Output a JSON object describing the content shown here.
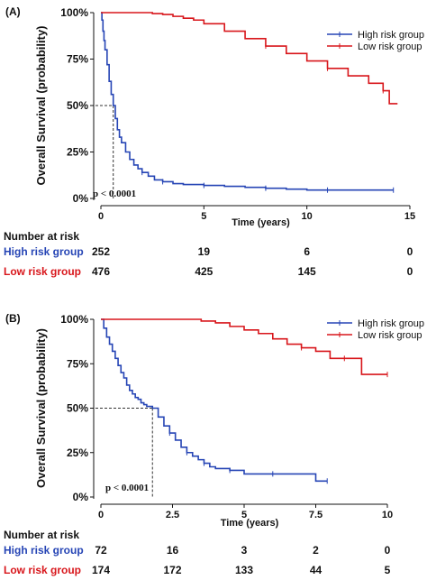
{
  "colors": {
    "high": "#2645b5",
    "low": "#d8161b",
    "axis": "#111111",
    "ref": "#333333"
  },
  "chart_data": [
    {
      "type": "line",
      "panel_label": "(A)",
      "xlabel": "Time (years)",
      "ylabel": "Overall Survival (probability)",
      "xlim": [
        0,
        15
      ],
      "ylim": [
        0,
        1
      ],
      "xticks": [
        0,
        5,
        10,
        15
      ],
      "xtick_labels": [
        "0",
        "5",
        "10",
        "15"
      ],
      "yticks": [
        0,
        0.25,
        0.5,
        0.75,
        1
      ],
      "ytick_labels": [
        "0%",
        "25%",
        "50%",
        "75%",
        "100%"
      ],
      "pvalue": "p < 0.0001",
      "median_line": {
        "x": 0.6,
        "y": 0.5
      },
      "legend_position": "top-right",
      "series": [
        {
          "name": "High risk group",
          "color": "high",
          "x": [
            0,
            0.05,
            0.1,
            0.15,
            0.2,
            0.3,
            0.4,
            0.5,
            0.6,
            0.7,
            0.8,
            0.9,
            1.0,
            1.2,
            1.4,
            1.6,
            1.8,
            2.0,
            2.3,
            2.6,
            3.0,
            3.5,
            4.0,
            5.0,
            6.0,
            7.0,
            8.0,
            9.0,
            10.0,
            11.0,
            12.0,
            13.0,
            14.2
          ],
          "y": [
            1.0,
            0.96,
            0.9,
            0.85,
            0.8,
            0.72,
            0.63,
            0.56,
            0.5,
            0.43,
            0.37,
            0.33,
            0.3,
            0.25,
            0.21,
            0.18,
            0.16,
            0.14,
            0.12,
            0.1,
            0.09,
            0.08,
            0.075,
            0.07,
            0.065,
            0.06,
            0.055,
            0.05,
            0.045,
            0.045,
            0.045,
            0.045,
            0.045
          ]
        },
        {
          "name": "Low risk group",
          "color": "low",
          "x": [
            0,
            1,
            2,
            2.5,
            3,
            3.5,
            4,
            4.5,
            5,
            6,
            7,
            8,
            9,
            10,
            11,
            12,
            13,
            13.7,
            14,
            14.4
          ],
          "y": [
            1.0,
            1.0,
            1.0,
            0.995,
            0.99,
            0.98,
            0.97,
            0.96,
            0.94,
            0.9,
            0.86,
            0.82,
            0.78,
            0.74,
            0.7,
            0.66,
            0.62,
            0.58,
            0.51,
            0.51
          ]
        }
      ],
      "risk_table": {
        "title": "Number at risk",
        "times": [
          0,
          5,
          10,
          15
        ],
        "rows": [
          {
            "label": "High risk group",
            "color": "high",
            "values": [
              "252",
              "19",
              "6",
              "0"
            ]
          },
          {
            "label": "Low risk group",
            "color": "low",
            "values": [
              "476",
              "425",
              "145",
              "0"
            ]
          }
        ]
      }
    },
    {
      "type": "line",
      "panel_label": "(B)",
      "xlabel": "Time (years)",
      "ylabel": "Overall Survival (probability)",
      "xlim": [
        0,
        10
      ],
      "ylim": [
        0,
        1
      ],
      "xticks": [
        0,
        2.5,
        5,
        7.5,
        10
      ],
      "xtick_labels": [
        "0",
        "2.5",
        "5",
        "7.5",
        "10"
      ],
      "yticks": [
        0,
        0.25,
        0.5,
        0.75,
        1
      ],
      "ytick_labels": [
        "0%",
        "25%",
        "50%",
        "75%",
        "100%"
      ],
      "pvalue": "p < 0.0001",
      "median_line": {
        "x": 1.8,
        "y": 0.5
      },
      "legend_position": "top-right",
      "series": [
        {
          "name": "High risk group",
          "color": "high",
          "x": [
            0,
            0.1,
            0.2,
            0.3,
            0.4,
            0.5,
            0.6,
            0.7,
            0.8,
            0.9,
            1.0,
            1.1,
            1.2,
            1.3,
            1.4,
            1.5,
            1.6,
            1.8,
            2.0,
            2.2,
            2.4,
            2.6,
            2.8,
            3.0,
            3.2,
            3.4,
            3.6,
            3.8,
            4.0,
            4.5,
            5.0,
            5.5,
            6.0,
            7.0,
            7.5,
            7.9
          ],
          "y": [
            1.0,
            0.95,
            0.9,
            0.86,
            0.82,
            0.78,
            0.74,
            0.7,
            0.67,
            0.63,
            0.6,
            0.58,
            0.56,
            0.55,
            0.53,
            0.52,
            0.51,
            0.5,
            0.45,
            0.4,
            0.36,
            0.32,
            0.28,
            0.25,
            0.23,
            0.21,
            0.19,
            0.17,
            0.16,
            0.15,
            0.13,
            0.13,
            0.13,
            0.13,
            0.09,
            0.09
          ]
        },
        {
          "name": "Low risk group",
          "color": "low",
          "x": [
            0,
            1,
            2,
            3,
            3.5,
            4,
            4.5,
            5,
            5.5,
            6,
            6.5,
            7,
            7.5,
            8,
            8.5,
            9,
            9.1,
            10
          ],
          "y": [
            1.0,
            1.0,
            1.0,
            1.0,
            0.99,
            0.98,
            0.96,
            0.94,
            0.92,
            0.89,
            0.86,
            0.84,
            0.82,
            0.78,
            0.78,
            0.78,
            0.69,
            0.69
          ]
        }
      ],
      "risk_table": {
        "title": "Number at risk",
        "times": [
          0,
          2.5,
          5,
          7.5,
          10
        ],
        "rows": [
          {
            "label": "High risk group",
            "color": "high",
            "values": [
              "72",
              "16",
              "3",
              "2",
              "0"
            ]
          },
          {
            "label": "Low risk group",
            "color": "low",
            "values": [
              "174",
              "172",
              "133",
              "44",
              "5"
            ]
          }
        ]
      }
    }
  ]
}
